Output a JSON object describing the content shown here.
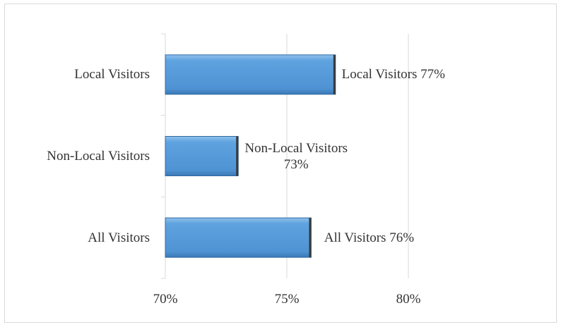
{
  "chart_data": {
    "type": "bar",
    "orientation": "horizontal",
    "categories": [
      "Local Visitors",
      "Non-Local Visitors",
      "All Visitors"
    ],
    "values": [
      77,
      73,
      76
    ],
    "value_labels": [
      "Local Visitors 77%",
      "Non-Local Visitors 73%",
      "All Visitors 76%"
    ],
    "color": "#5b9bd5",
    "xlim": [
      70,
      80
    ],
    "xticks": [
      {
        "value": 70,
        "label": "70%"
      },
      {
        "value": 75,
        "label": "75%"
      },
      {
        "value": 80,
        "label": "80%"
      }
    ],
    "grid": true
  }
}
